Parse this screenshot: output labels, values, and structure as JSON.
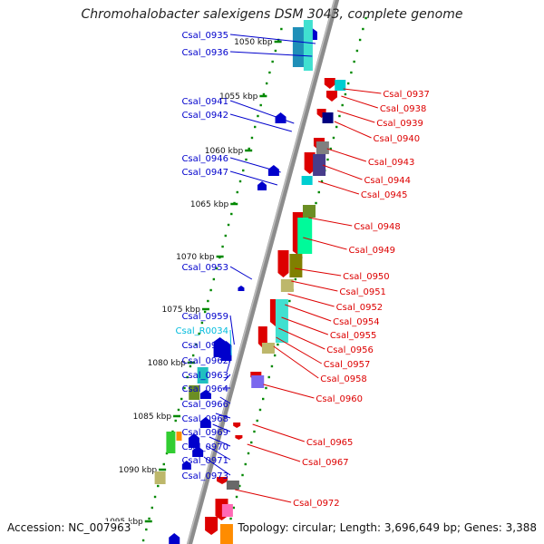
{
  "title": "Chromohalobacter salexigens DSM 3043, complete genome",
  "accession_label": "Accession: NC_007963",
  "summary_label": "Topology: circular; Length: 3,696,649 bp; Genes: 3,388",
  "colors": {
    "forward_strand": "#0000cc",
    "reverse_strand": "#dd0000",
    "rna_gene": "#00bbdd",
    "scale_dots": "#008800",
    "backbone": "#8c8c8c"
  },
  "scale_ticks": [
    {
      "kbp": 1050,
      "label": "1050 kbp"
    },
    {
      "kbp": 1055,
      "label": "1055 kbp"
    },
    {
      "kbp": 1060,
      "label": "1060 kbp"
    },
    {
      "kbp": 1065,
      "label": "1065 kbp"
    },
    {
      "kbp": 1070,
      "label": "1070 kbp"
    },
    {
      "kbp": 1075,
      "label": "1075 kbp"
    },
    {
      "kbp": 1080,
      "label": "1080 kbp"
    },
    {
      "kbp": 1085,
      "label": "1085 kbp"
    },
    {
      "kbp": 1090,
      "label": "1090 kbp"
    },
    {
      "kbp": 1095,
      "label": "1095 kbp"
    }
  ],
  "left_genes": [
    {
      "label": "Csal_0935",
      "color": "#0000cc"
    },
    {
      "label": "Csal_0936",
      "color": "#0000cc"
    },
    {
      "label": "Csal_0941",
      "color": "#0000cc"
    },
    {
      "label": "Csal_0942",
      "color": "#0000cc"
    },
    {
      "label": "Csal_0946",
      "color": "#0000cc"
    },
    {
      "label": "Csal_0947",
      "color": "#0000cc"
    },
    {
      "label": "Csal_0953",
      "color": "#0000cc"
    },
    {
      "label": "Csal_0959",
      "color": "#0000cc"
    },
    {
      "label": "Csal_R0034",
      "color": "#00bbdd"
    },
    {
      "label": "Csal_0961",
      "color": "#0000cc"
    },
    {
      "label": "Csal_0962",
      "color": "#0000cc"
    },
    {
      "label": "Csal_0963",
      "color": "#0000cc"
    },
    {
      "label": "Csal_0964",
      "color": "#0000cc"
    },
    {
      "label": "Csal_0966",
      "color": "#0000cc"
    },
    {
      "label": "Csal_0968",
      "color": "#0000cc"
    },
    {
      "label": "Csal_0969",
      "color": "#0000cc"
    },
    {
      "label": "Csal_0970",
      "color": "#0000cc"
    },
    {
      "label": "Csal_0971",
      "color": "#0000cc"
    },
    {
      "label": "Csal_0973",
      "color": "#0000cc"
    }
  ],
  "right_genes": [
    {
      "label": "Csal_0937"
    },
    {
      "label": "Csal_0938"
    },
    {
      "label": "Csal_0939"
    },
    {
      "label": "Csal_0940"
    },
    {
      "label": "Csal_0943"
    },
    {
      "label": "Csal_0944"
    },
    {
      "label": "Csal_0945"
    },
    {
      "label": "Csal_0948"
    },
    {
      "label": "Csal_0949"
    },
    {
      "label": "Csal_0950"
    },
    {
      "label": "Csal_0951"
    },
    {
      "label": "Csal_0952"
    },
    {
      "label": "Csal_0954"
    },
    {
      "label": "Csal_0955"
    },
    {
      "label": "Csal_0956"
    },
    {
      "label": "Csal_0957"
    },
    {
      "label": "Csal_0958"
    },
    {
      "label": "Csal_0960"
    },
    {
      "label": "Csal_0965"
    },
    {
      "label": "Csal_0967"
    },
    {
      "label": "Csal_0972"
    }
  ]
}
